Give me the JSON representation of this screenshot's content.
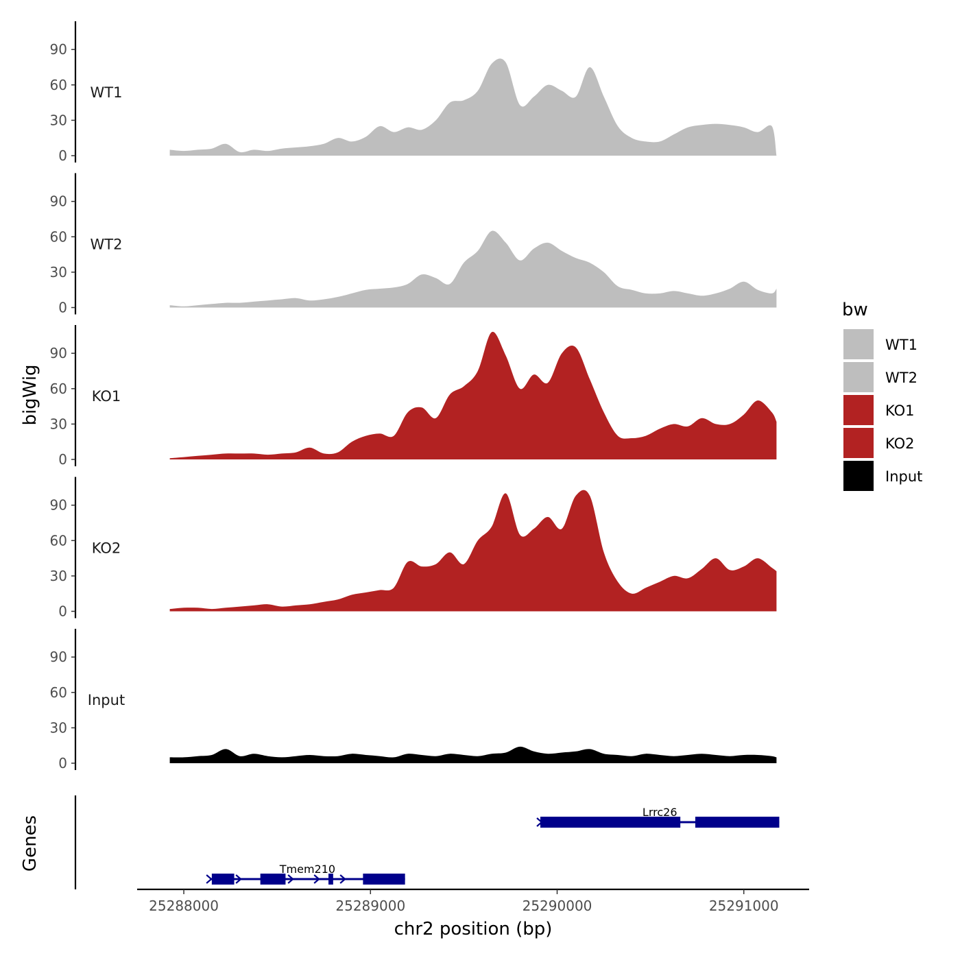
{
  "chart_data": {
    "type": "area",
    "ylabel": "bigWig",
    "xlabel": "chr2 position (bp)",
    "ylim": [
      0,
      110
    ],
    "yticks": [
      0,
      30,
      60,
      90
    ],
    "xlim": [
      25287750,
      25291350
    ],
    "xticks": [
      25288000,
      25289000,
      25290000,
      25291000
    ],
    "xtick_labels": [
      "25288000",
      "25289000",
      "25290000",
      "25291000"
    ],
    "legend": {
      "title": "bw",
      "placement": "right",
      "entries": [
        {
          "label": "WT1",
          "color": "#bebebe"
        },
        {
          "label": "WT2",
          "color": "#bebebe"
        },
        {
          "label": "KO1",
          "color": "#b22222"
        },
        {
          "label": "KO2",
          "color": "#b22222"
        },
        {
          "label": "Input",
          "color": "#000000"
        }
      ]
    },
    "x": [
      25287925,
      25288000,
      25288075,
      25288150,
      25288225,
      25288300,
      25288375,
      25288450,
      25288525,
      25288600,
      25288675,
      25288750,
      25288825,
      25288900,
      25288975,
      25289050,
      25289125,
      25289200,
      25289275,
      25289350,
      25289425,
      25289500,
      25289575,
      25289650,
      25289725,
      25289800,
      25289875,
      25289950,
      25290025,
      25290100,
      25290175,
      25290250,
      25290325,
      25290400,
      25290475,
      25290550,
      25290625,
      25290700,
      25290775,
      25290850,
      25290925,
      25291000,
      25291075,
      25291150,
      25291175
    ],
    "series": [
      {
        "name": "WT1",
        "color": "#bebebe",
        "values": [
          5,
          4,
          5,
          6,
          10,
          3,
          5,
          4,
          6,
          7,
          8,
          10,
          15,
          12,
          16,
          25,
          20,
          24,
          22,
          30,
          45,
          47,
          55,
          78,
          79,
          43,
          50,
          60,
          55,
          50,
          75,
          50,
          25,
          15,
          12,
          12,
          18,
          24,
          26,
          27,
          26,
          24,
          20,
          25,
          0
        ]
      },
      {
        "name": "WT2",
        "color": "#bebebe",
        "values": [
          2,
          1,
          2,
          3,
          4,
          4,
          5,
          6,
          7,
          8,
          6,
          7,
          9,
          12,
          15,
          16,
          17,
          20,
          28,
          25,
          20,
          38,
          48,
          65,
          55,
          40,
          50,
          55,
          48,
          42,
          38,
          30,
          18,
          15,
          12,
          12,
          14,
          12,
          10,
          12,
          16,
          22,
          15,
          12,
          16
        ]
      },
      {
        "name": "KO1",
        "color": "#b22222",
        "values": [
          1,
          2,
          3,
          4,
          5,
          5,
          5,
          4,
          5,
          6,
          10,
          5,
          6,
          15,
          20,
          22,
          20,
          40,
          44,
          35,
          55,
          62,
          75,
          108,
          88,
          60,
          72,
          65,
          90,
          95,
          68,
          40,
          20,
          18,
          20,
          26,
          30,
          28,
          35,
          30,
          30,
          38,
          50,
          40,
          32
        ]
      },
      {
        "name": "KO2",
        "color": "#b22222",
        "values": [
          2,
          3,
          3,
          2,
          3,
          4,
          5,
          6,
          4,
          5,
          6,
          8,
          10,
          14,
          16,
          18,
          20,
          42,
          38,
          40,
          50,
          40,
          60,
          72,
          100,
          65,
          70,
          80,
          70,
          98,
          98,
          50,
          25,
          15,
          20,
          25,
          30,
          28,
          36,
          45,
          35,
          38,
          45,
          37,
          34
        ]
      },
      {
        "name": "Input",
        "color": "#000000",
        "values": [
          5,
          5,
          6,
          7,
          12,
          6,
          8,
          6,
          5,
          6,
          7,
          6,
          6,
          8,
          7,
          6,
          5,
          8,
          7,
          6,
          8,
          7,
          6,
          8,
          9,
          14,
          10,
          8,
          9,
          10,
          12,
          8,
          7,
          6,
          8,
          7,
          6,
          7,
          8,
          7,
          6,
          7,
          7,
          6,
          5
        ]
      }
    ],
    "genes": {
      "track_label": "Genes",
      "color": "#00008b",
      "items": [
        {
          "name": "Lrrc26",
          "start": 25289910,
          "end": 25291190,
          "strand": "+",
          "exons": [
            [
              25289910,
              25290660
            ],
            [
              25290740,
              25291190
            ]
          ]
        },
        {
          "name": "Tmem210",
          "start": 25288140,
          "end": 25289185,
          "strand": "+",
          "exons": [
            [
              25288150,
              25288270
            ],
            [
              25288410,
              25288545
            ],
            [
              25288775,
              25288800
            ],
            [
              25288960,
              25289185
            ]
          ]
        }
      ]
    }
  }
}
